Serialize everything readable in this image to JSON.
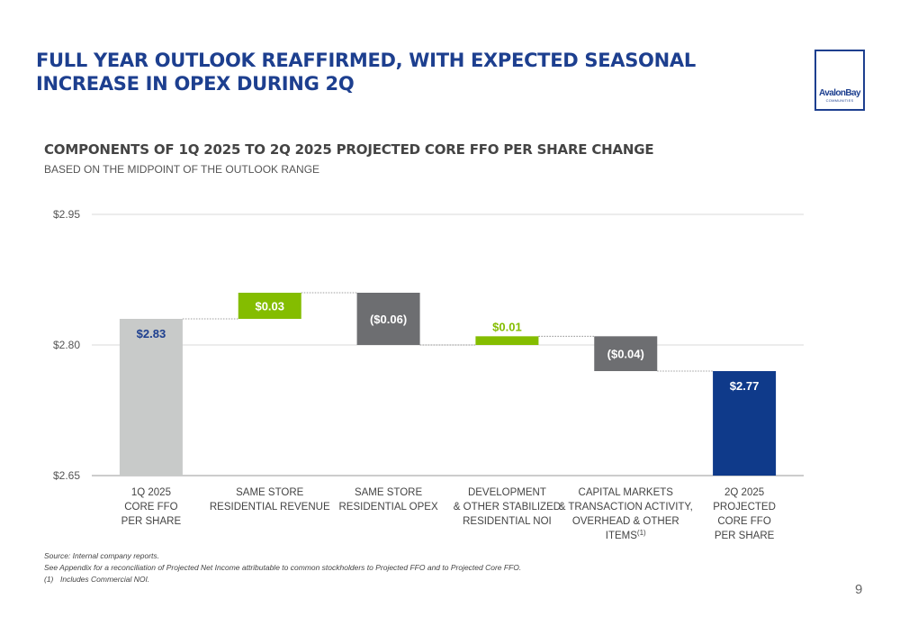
{
  "header": {
    "title_line1": "FULL YEAR OUTLOOK REAFFIRMED, WITH EXPECTED SEASONAL",
    "title_line2": "INCREASE IN OPEX DURING 2Q"
  },
  "logo": {
    "name": "AvalonBay",
    "sub": "COMMUNITIES"
  },
  "colors": {
    "start_bar": "#c8cac9",
    "increase": "#84bd00",
    "decrease": "#6d6e71",
    "end_bar": "#0f3a8a",
    "label_dark": "#1d3f8f",
    "label_light": "#ffffff",
    "grid": "#d9d9d9",
    "connector": "#7f7f7f"
  },
  "chart_data": {
    "type": "bar",
    "subtype": "waterfall",
    "title": "COMPONENTS OF 1Q 2025 TO 2Q 2025 PROJECTED CORE FFO PER SHARE CHANGE",
    "subtitle": "BASED ON THE MIDPOINT OF THE OUTLOOK RANGE",
    "xlabel": "",
    "ylabel": "",
    "ylim": [
      2.65,
      2.95
    ],
    "yticks": [
      2.65,
      2.8,
      2.95
    ],
    "ytick_labels": [
      "$2.65",
      "$2.80",
      "$2.95"
    ],
    "grid": true,
    "categories": [
      [
        "1Q 2025",
        "CORE FFO",
        "PER SHARE"
      ],
      [
        "SAME STORE",
        "RESIDENTIAL REVENUE"
      ],
      [
        "SAME STORE",
        "RESIDENTIAL OPEX"
      ],
      [
        "DEVELOPMENT",
        "& OTHER STABILIZED",
        "RESIDENTIAL NOI"
      ],
      [
        "CAPITAL MARKETS",
        "& TRANSACTION ACTIVITY,",
        "OVERHEAD & OTHER",
        "ITEMS"
      ],
      [
        "2Q 2025",
        "PROJECTED",
        "CORE FFO",
        "PER SHARE"
      ]
    ],
    "category_superscripts": [
      "",
      "",
      "",
      "",
      "(1)",
      ""
    ],
    "kinds": [
      "total",
      "increase",
      "decrease",
      "increase",
      "decrease",
      "total"
    ],
    "values": [
      2.83,
      0.03,
      -0.06,
      0.01,
      -0.04,
      2.77
    ],
    "data_labels": [
      "$2.83",
      "$0.03",
      "($0.06)",
      "$0.01",
      "($0.04)",
      "$2.77"
    ]
  },
  "footnotes": {
    "source": "Source:  Internal company reports.",
    "appendix": "See Appendix for a reconciliation of Projected Net Income attributable to common stockholders to Projected FFO and to Projected Core FFO.",
    "note1_num": "(1)",
    "note1_text": "Includes Commercial NOI."
  },
  "page_number": "9"
}
